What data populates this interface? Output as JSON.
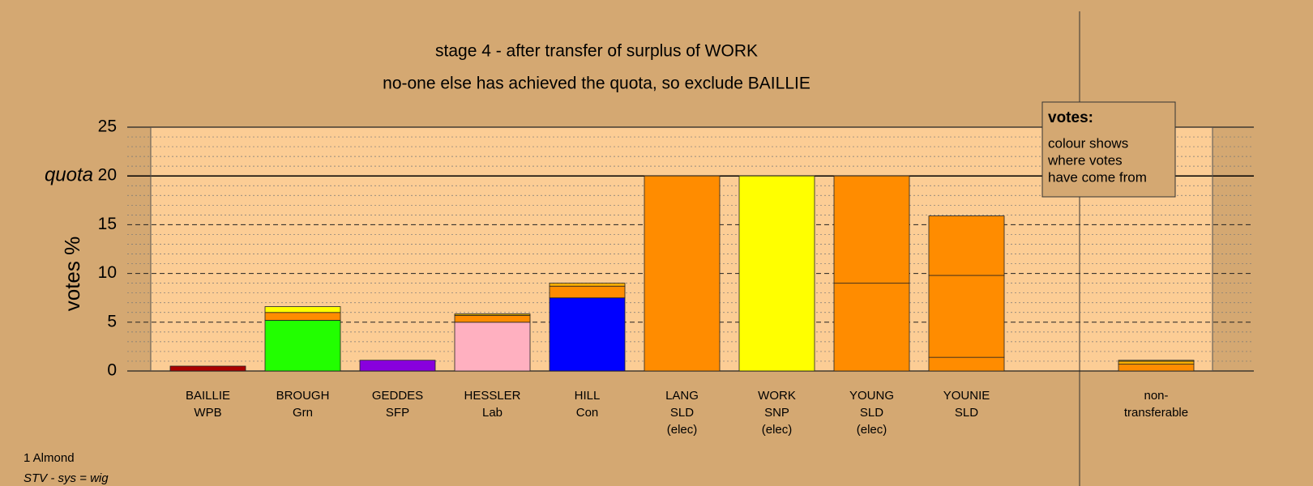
{
  "chart_data": {
    "type": "bar",
    "title": "stage 4 - after transfer of surplus of WORK",
    "subtitle": "no-one else has achieved the quota, so exclude BAILLIE",
    "y_label": "votes %",
    "categories": [
      [
        "BAILLIE",
        "WPB"
      ],
      [
        "BROUGH",
        "Grn"
      ],
      [
        "GEDDES",
        "SFP"
      ],
      [
        "HESSLER",
        "Lab"
      ],
      [
        "HILL",
        "Con"
      ],
      [
        "LANG",
        "SLD",
        "(elec)"
      ],
      [
        "WORK",
        "SNP",
        "(elec)"
      ],
      [
        "YOUNG",
        "SLD",
        "(elec)"
      ],
      [
        "YOUNIE",
        "SLD"
      ],
      [
        "non-",
        "transferable"
      ]
    ],
    "stacks": [
      [
        {
          "value": 0.5,
          "color": "#aa0000"
        }
      ],
      [
        {
          "value": 5.2,
          "color": "#22ff00"
        },
        {
          "value": 0.8,
          "color": "#ff8c00"
        },
        {
          "value": 0.6,
          "color": "#ffff00"
        }
      ],
      [
        {
          "value": 1.1,
          "color": "#8800dd"
        }
      ],
      [
        {
          "value": 5.0,
          "color": "#ffb0c0"
        },
        {
          "value": 0.7,
          "color": "#ff8c00"
        },
        {
          "value": 0.15,
          "color": "#c8a000"
        }
      ],
      [
        {
          "value": 7.5,
          "color": "#0000ff"
        },
        {
          "value": 1.2,
          "color": "#ff8c00"
        },
        {
          "value": 0.3,
          "color": "#ffb000"
        }
      ],
      [
        {
          "value": 20,
          "color": "#ff8c00"
        }
      ],
      [
        {
          "value": 20,
          "color": "#ffff00"
        }
      ],
      [
        {
          "value": 9.0,
          "color": "#ff8c00"
        },
        {
          "value": 11.0,
          "color": "#ff8c00"
        }
      ],
      [
        {
          "value": 1.4,
          "color": "#ff8c00"
        },
        {
          "value": 8.4,
          "color": "#ff8c00"
        },
        {
          "value": 6.1,
          "color": "#ff8c00"
        }
      ],
      [
        {
          "value": 0.7,
          "color": "#ff8c00"
        },
        {
          "value": 0.3,
          "color": "#ffb000"
        },
        {
          "value": 0.1,
          "color": "#c8a000"
        }
      ]
    ],
    "ylim": [
      0,
      25
    ],
    "yticks": [
      0,
      5,
      10,
      15,
      25
    ],
    "minor_yticks": [
      1,
      2,
      3,
      4,
      6,
      7,
      8,
      9,
      11,
      12,
      13,
      14,
      16,
      17,
      18,
      19,
      21,
      22,
      23,
      24
    ],
    "quota": {
      "value": 20,
      "label": "quota",
      "tick_label": "20"
    },
    "plot_color": "#fccd95",
    "legend": {
      "title": "votes:",
      "lines": [
        "colour shows",
        "where votes",
        "have come from"
      ]
    },
    "footer": [
      "1 Almond",
      "STV - sys = wig"
    ]
  }
}
